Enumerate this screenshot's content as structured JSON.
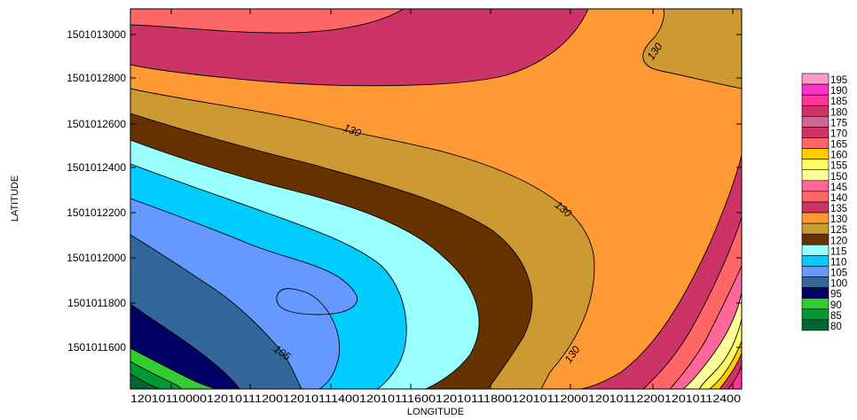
{
  "chart_data": {
    "type": "contour",
    "xlabel": "LONGITUDE",
    "ylabel": "LATITUDE",
    "x_ticks": [
      "12010110000",
      "12010111200",
      "12010111400",
      "12010111600",
      "12010111800",
      "12010112000",
      "12010112200",
      "12010112400"
    ],
    "y_ticks": [
      "1501013000",
      "1501012800",
      "1501012600",
      "1501012400",
      "1501012200",
      "1501012000",
      "1501011800",
      "1501011600"
    ],
    "contour_labels": [
      "130",
      "130",
      "130",
      "130",
      "105"
    ],
    "legend": {
      "placement": "right",
      "levels": [
        "195",
        "190",
        "185",
        "180",
        "175",
        "170",
        "165",
        "160",
        "155",
        "150",
        "145",
        "140",
        "135",
        "130",
        "125",
        "120",
        "115",
        "110",
        "105",
        "100",
        "95",
        "90",
        "85",
        "80"
      ],
      "colors": [
        "#ff99cc",
        "#ff33cc",
        "#ff3399",
        "#cc3366",
        "#cc6699",
        "#cc3366",
        "#ff6666",
        "#ffcc00",
        "#ffff66",
        "#ffff99",
        "#ff6699",
        "#ff6666",
        "#cc3366",
        "#ff9933",
        "#cc9933",
        "#663300",
        "#99ffff",
        "#00ccff",
        "#6699ff",
        "#336699",
        "#000066",
        "#33cc33",
        "#009933",
        "#006633"
      ]
    },
    "region_colors": {
      "darkgreen": "#006633",
      "green": "#009933",
      "lightgreen": "#33cc33",
      "navy": "#000066",
      "steelblue": "#336699",
      "cornflower": "#6699ff",
      "cyan": "#00ccff",
      "lightcyan": "#99ffff",
      "brown": "#663300",
      "tan": "#cc9933",
      "orange": "#ff9933",
      "crimson": "#cc3366",
      "salmon": "#ff6666",
      "pink": "#ff6699",
      "paleyellow": "#ffff99",
      "yellow": "#ffff66",
      "gold": "#ffcc00",
      "magenta": "#ff3399"
    }
  }
}
